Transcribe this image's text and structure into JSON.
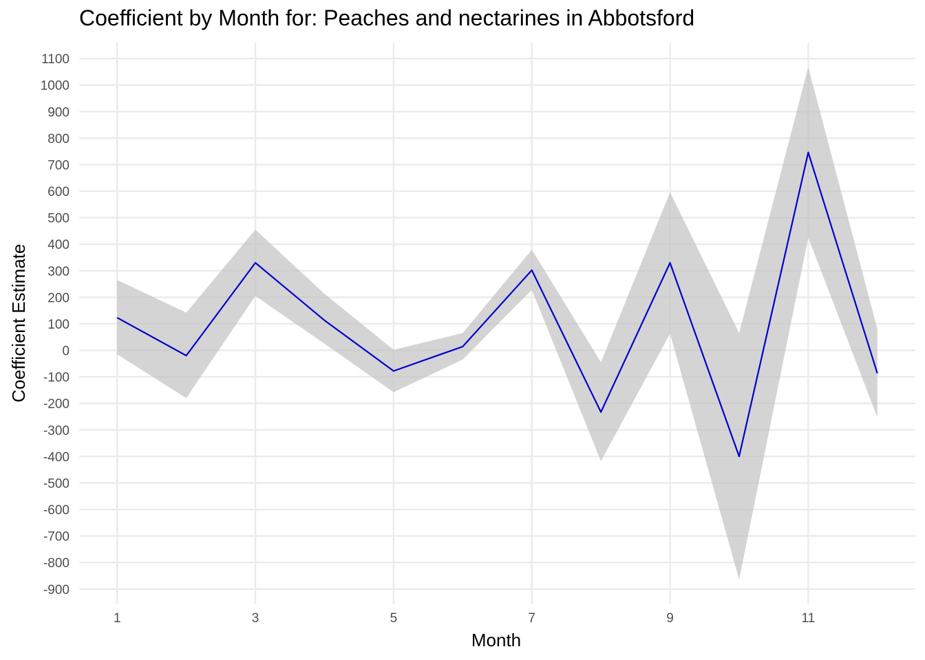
{
  "chart_data": {
    "type": "line",
    "title": "Coefficient by Month for: Peaches and nectarines in Abbotsford",
    "xlabel": "Month",
    "ylabel": "Coefficient Estimate",
    "x": [
      1,
      2,
      3,
      4,
      5,
      6,
      7,
      8,
      9,
      10,
      11,
      12
    ],
    "series": [
      {
        "values": [
          123,
          -20,
          330,
          113,
          -78,
          14,
          302,
          -233,
          330,
          -400,
          746,
          -87
        ],
        "lower": [
          -15,
          -180,
          205,
          25,
          -158,
          -35,
          228,
          -418,
          63,
          -864,
          425,
          -253
        ],
        "upper": [
          265,
          142,
          455,
          213,
          2,
          65,
          380,
          -45,
          596,
          65,
          1068,
          80
        ]
      }
    ],
    "xticks": [
      "1",
      "3",
      "5",
      "7",
      "9",
      "11"
    ],
    "yticks": [
      "1100",
      "1000",
      "900",
      "800",
      "700",
      "600",
      "500",
      "400",
      "300",
      "200",
      "100",
      "0",
      "-100",
      "-200",
      "-300",
      "-400",
      "-500",
      "-600",
      "-700",
      "-800",
      "-900"
    ],
    "xlim": [
      0.45,
      12.55
    ],
    "ylim": [
      -955,
      1160
    ],
    "grid": true,
    "colors": {
      "line": "#0000cd",
      "band": "#bfbfbf",
      "grid": "#ebebeb",
      "tick_text": "#4d4d4d"
    }
  }
}
